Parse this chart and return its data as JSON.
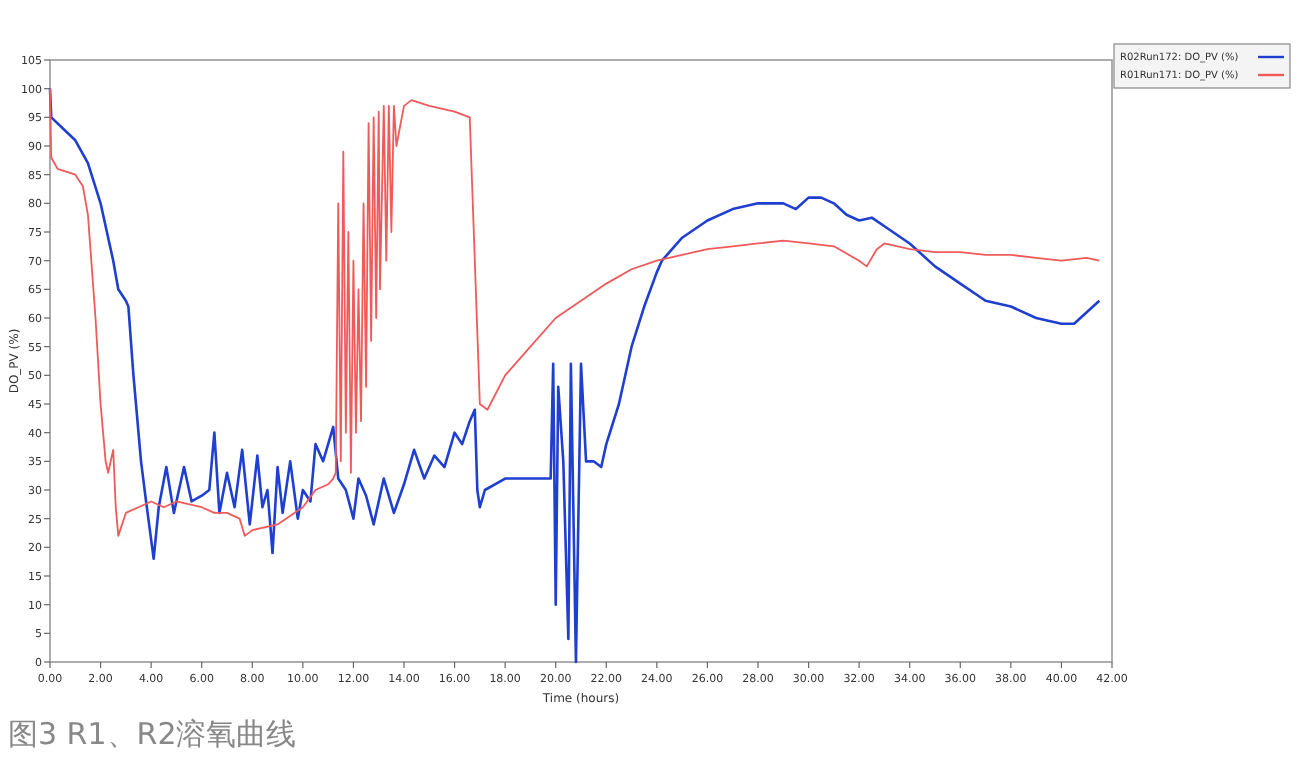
{
  "chart_data": {
    "type": "line",
    "xlabel": "Time (hours)",
    "ylabel": "DO_PV (%)",
    "annotations": [
      "图3 R1、R2溶氧曲线"
    ],
    "xlim": [
      0,
      42
    ],
    "ylim": [
      0,
      105
    ],
    "xticks": [
      {
        "value": 0,
        "label": "0.00"
      },
      {
        "value": 2,
        "label": "2.00"
      },
      {
        "value": 4,
        "label": "4.00"
      },
      {
        "value": 6,
        "label": "6.00"
      },
      {
        "value": 8,
        "label": "8.00"
      },
      {
        "value": 10,
        "label": "10.00"
      },
      {
        "value": 12,
        "label": "12.00"
      },
      {
        "value": 14,
        "label": "14.00"
      },
      {
        "value": 16,
        "label": "16.00"
      },
      {
        "value": 18,
        "label": "18.00"
      },
      {
        "value": 20,
        "label": "20.00"
      },
      {
        "value": 22,
        "label": "22.00"
      },
      {
        "value": 24,
        "label": "24.00"
      },
      {
        "value": 26,
        "label": "26.00"
      },
      {
        "value": 28,
        "label": "28.00"
      },
      {
        "value": 30,
        "label": "30.00"
      },
      {
        "value": 32,
        "label": "32.00"
      },
      {
        "value": 34,
        "label": "34.00"
      },
      {
        "value": 36,
        "label": "36.00"
      },
      {
        "value": 38,
        "label": "38.00"
      },
      {
        "value": 40,
        "label": "40.00"
      },
      {
        "value": 42,
        "label": "42.00"
      }
    ],
    "yticks": [
      0,
      5,
      10,
      15,
      20,
      25,
      30,
      35,
      40,
      45,
      50,
      55,
      60,
      65,
      70,
      75,
      80,
      85,
      90,
      95,
      100,
      105
    ],
    "grid": false,
    "legend": "top right",
    "marker": "none",
    "line_style": "solid",
    "series": [
      {
        "name": "R02Run172: DO_PV (%)",
        "color": "#1f3fd0",
        "x": [
          0,
          0.05,
          1,
          1.5,
          2,
          2.5,
          2.7,
          3,
          3.1,
          3.3,
          3.6,
          3.8,
          4.1,
          4.3,
          4.6,
          4.9,
          5.3,
          5.6,
          6,
          6.3,
          6.5,
          6.7,
          7,
          7.3,
          7.6,
          7.9,
          8.2,
          8.4,
          8.6,
          8.8,
          9,
          9.2,
          9.5,
          9.8,
          10,
          10.3,
          10.5,
          10.8,
          11.2,
          11.4,
          11.7,
          12,
          12.2,
          12.5,
          12.8,
          13.2,
          13.6,
          14,
          14.4,
          14.8,
          15.2,
          15.6,
          16,
          16.3,
          16.6,
          16.8,
          16.9,
          17,
          17.2,
          18,
          19,
          19.8,
          19.9,
          20,
          20.1,
          20.3,
          20.5,
          20.6,
          20.8,
          21,
          21.2,
          21.5,
          21.8,
          22,
          22.5,
          23,
          23.5,
          24,
          24.2,
          25,
          26,
          27,
          28,
          29,
          29.5,
          30,
          30.5,
          31,
          31.5,
          32,
          32.5,
          33,
          34,
          35,
          36,
          37,
          38,
          39,
          40,
          40.5,
          41,
          41.5
        ],
        "values": [
          100,
          95,
          91,
          87,
          80,
          70,
          65,
          63,
          62,
          50,
          35,
          28,
          18,
          27,
          34,
          26,
          34,
          28,
          29,
          30,
          40,
          26,
          33,
          27,
          37,
          24,
          36,
          27,
          30,
          19,
          34,
          26,
          35,
          25,
          30,
          28,
          38,
          35,
          41,
          32,
          30,
          25,
          32,
          29,
          24,
          32,
          26,
          31,
          37,
          32,
          36,
          34,
          40,
          38,
          42,
          44,
          30,
          27,
          30,
          32,
          32,
          32,
          52,
          10,
          48,
          35,
          4,
          52,
          0,
          52,
          35,
          35,
          34,
          38,
          45,
          55,
          62,
          68,
          70,
          74,
          77,
          79,
          80,
          80,
          79,
          81,
          81,
          80,
          78,
          77,
          77.5,
          76,
          73,
          69,
          66,
          63,
          62,
          60,
          59,
          59,
          61,
          63
        ]
      },
      {
        "name": "R01Run171: DO_PV (%)",
        "color": "#f05a5a",
        "x": [
          0,
          0.05,
          0.3,
          1,
          1.3,
          1.5,
          1.8,
          2,
          2.2,
          2.3,
          2.5,
          2.6,
          2.7,
          3,
          3.5,
          4,
          4.5,
          5,
          6,
          6.5,
          7,
          7.5,
          7.7,
          8,
          9,
          10,
          10.5,
          11,
          11.2,
          11.3,
          11.4,
          11.5,
          11.6,
          11.7,
          11.8,
          11.9,
          12,
          12.1,
          12.2,
          12.3,
          12.4,
          12.5,
          12.6,
          12.7,
          12.8,
          12.9,
          13,
          13.05,
          13.2,
          13.3,
          13.4,
          13.5,
          13.6,
          13.7,
          14,
          14.3,
          15,
          16,
          16.6,
          16.8,
          17,
          17.3,
          18,
          19,
          20,
          21,
          22,
          23,
          24,
          25,
          26,
          27,
          28,
          29,
          30,
          31,
          32,
          32.3,
          32.7,
          33,
          34,
          35,
          36,
          37,
          38,
          39,
          40,
          41,
          41.5
        ],
        "values": [
          100,
          88,
          86,
          85,
          83,
          78,
          60,
          45,
          35,
          33,
          37,
          27,
          22,
          26,
          27,
          28,
          27,
          28,
          27,
          26,
          26,
          25,
          22,
          23,
          24,
          27,
          30,
          31,
          32,
          33,
          80,
          35,
          89,
          40,
          75,
          33,
          70,
          40,
          65,
          42,
          80,
          48,
          94,
          56,
          95,
          60,
          96,
          65,
          97,
          70,
          97,
          75,
          97,
          90,
          97,
          98,
          97,
          96,
          95,
          70,
          45,
          44,
          50,
          55,
          60,
          63,
          66,
          68.5,
          70,
          71,
          72,
          72.5,
          73,
          73.5,
          73,
          72.5,
          70,
          69,
          72,
          73,
          72,
          71.5,
          71.5,
          71,
          71,
          70.5,
          70,
          70.5,
          70
        ]
      }
    ]
  }
}
